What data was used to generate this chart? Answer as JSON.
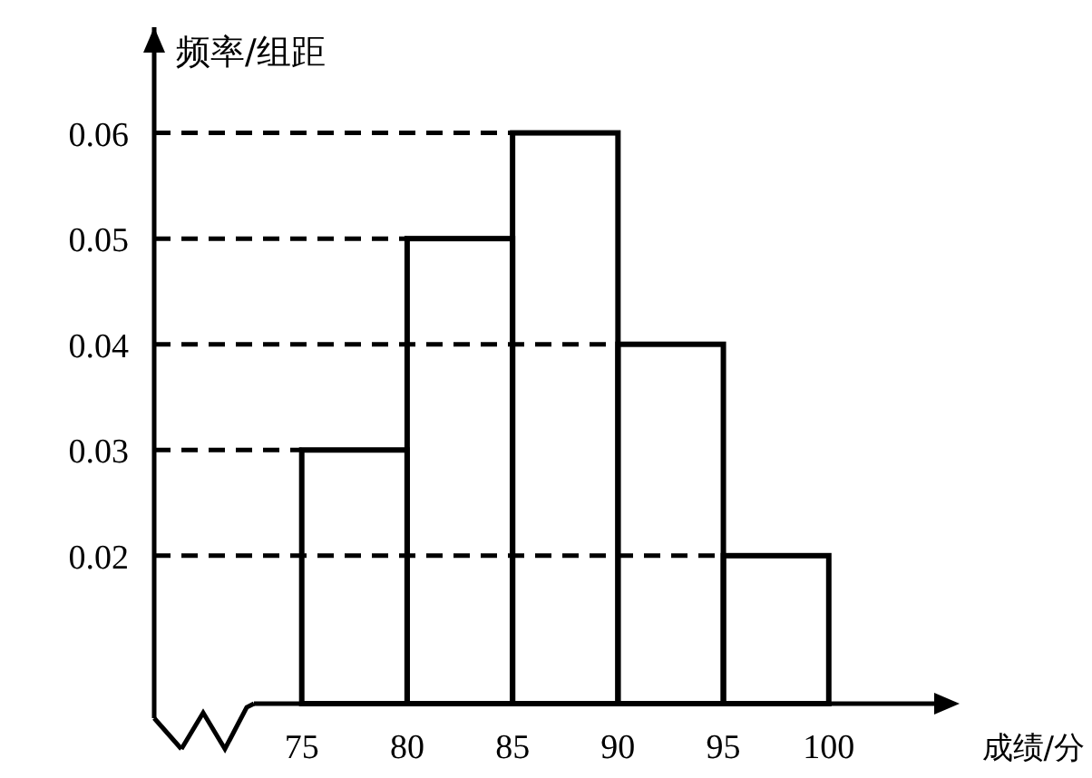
{
  "chart_data": {
    "type": "histogram",
    "xlabel": "成绩/分",
    "ylabel": "频率/组距",
    "bins": [
      75,
      80,
      85,
      90,
      95,
      100
    ],
    "values": [
      0.03,
      0.05,
      0.06,
      0.04,
      0.02
    ],
    "xlim": [
      68,
      105
    ],
    "ylim": [
      0.006,
      0.07
    ],
    "xticks": [
      75,
      80,
      85,
      90,
      95,
      100
    ],
    "yticks": [
      0.02,
      0.03,
      0.04,
      0.05,
      0.06
    ],
    "ref_lines": [
      {
        "axis": "y",
        "value": 0.06,
        "line_style": "dashed"
      },
      {
        "axis": "y",
        "value": 0.05,
        "line_style": "dashed"
      },
      {
        "axis": "y",
        "value": 0.04,
        "line_style": "dashed"
      },
      {
        "axis": "y",
        "value": 0.03,
        "line_style": "dashed"
      },
      {
        "axis": "y",
        "value": 0.02,
        "line_style": "dashed"
      }
    ]
  }
}
